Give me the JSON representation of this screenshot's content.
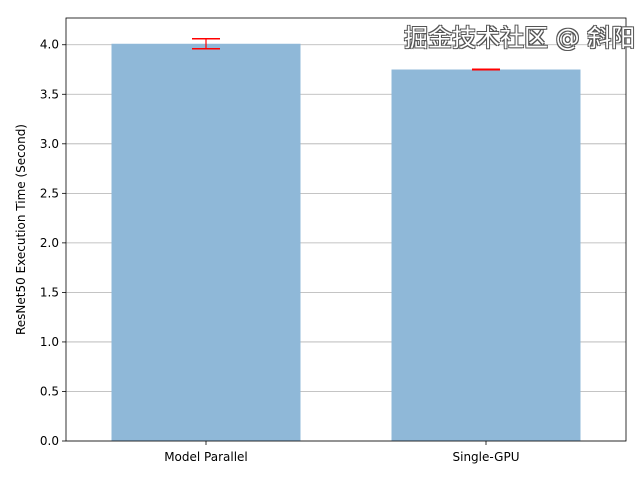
{
  "chart_data": {
    "type": "bar",
    "title": "",
    "xlabel": "",
    "ylabel": "ResNet50 Execution Time (Second)",
    "categories": [
      "Model Parallel",
      "Single-GPU"
    ],
    "values": [
      4.01,
      3.75
    ],
    "errors": [
      0.05,
      0.003
    ],
    "ylim": [
      0,
      4.27
    ],
    "yticks": [
      "0.0",
      "0.5",
      "1.0",
      "1.5",
      "2.0",
      "2.5",
      "3.0",
      "3.5",
      "4.0"
    ],
    "grid": "y",
    "bar_color": "#8fb8d8",
    "error_color": "#ff0000"
  },
  "watermark": "掘金技术社区 @ 斜阳"
}
